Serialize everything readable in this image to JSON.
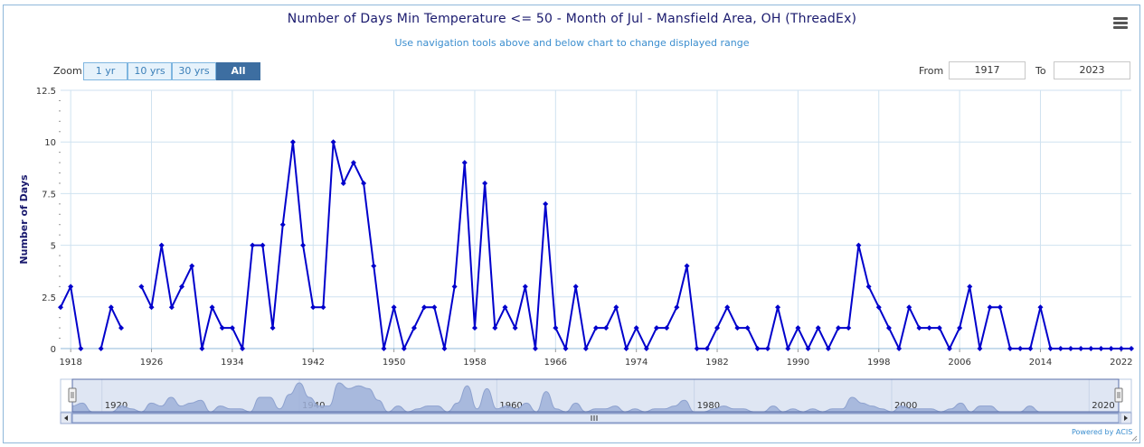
{
  "title": "Number of Days Min Temperature <= 50 - Month of Jul - Mansfield Area, OH (ThreadEx)",
  "subtitle": "Use navigation tools above and below chart to change displayed range",
  "zoom": {
    "label": "Zoom",
    "buttons": [
      "1 yr",
      "10 yrs",
      "30 yrs",
      "All"
    ],
    "active": "All"
  },
  "range": {
    "from_label": "From",
    "from_value": "1917",
    "to_label": "To",
    "to_value": "2023"
  },
  "powered_by": "Powered by ACIS",
  "colors": {
    "series": "#0000cc",
    "grid": "#cfe2f0",
    "navigator_fill": "#9fb0d8",
    "navigator_mask": "#dbe3f2"
  },
  "chart_data": {
    "type": "line",
    "title": "Number of Days Min Temperature <= 50 - Month of Jul - Mansfield Area, OH (ThreadEx)",
    "xlabel": "",
    "ylabel": "Number of Days",
    "xlim": [
      1917,
      2023
    ],
    "ylim": [
      0,
      12.5
    ],
    "x_ticks": [
      1918,
      1926,
      1934,
      1942,
      1950,
      1958,
      1966,
      1974,
      1982,
      1990,
      1998,
      2006,
      2014,
      2022
    ],
    "y_ticks": [
      "0",
      "2.5",
      "5",
      "7.5",
      "10",
      "12.5"
    ],
    "navigator_ticks": [
      1920,
      1940,
      1960,
      1980,
      2000,
      2020
    ],
    "grid": true,
    "series": [
      {
        "name": "",
        "x": [
          1917,
          1918,
          1919,
          1920,
          1921,
          1922,
          1923,
          1924,
          1925,
          1926,
          1927,
          1928,
          1929,
          1930,
          1931,
          1932,
          1933,
          1934,
          1935,
          1936,
          1937,
          1938,
          1939,
          1940,
          1941,
          1942,
          1943,
          1944,
          1945,
          1946,
          1947,
          1948,
          1949,
          1950,
          1951,
          1952,
          1953,
          1954,
          1955,
          1956,
          1957,
          1958,
          1959,
          1960,
          1961,
          1962,
          1963,
          1964,
          1965,
          1966,
          1967,
          1968,
          1969,
          1970,
          1971,
          1972,
          1973,
          1974,
          1975,
          1976,
          1977,
          1978,
          1979,
          1980,
          1981,
          1982,
          1983,
          1984,
          1985,
          1986,
          1987,
          1988,
          1989,
          1990,
          1991,
          1992,
          1993,
          1994,
          1995,
          1996,
          1997,
          1998,
          1999,
          2000,
          2001,
          2002,
          2003,
          2004,
          2005,
          2006,
          2007,
          2008,
          2009,
          2010,
          2011,
          2012,
          2013,
          2014,
          2015,
          2016,
          2017,
          2018,
          2019,
          2020,
          2021,
          2022,
          2023
        ],
        "values": [
          2,
          3,
          0,
          null,
          0,
          2,
          1,
          null,
          3,
          2,
          5,
          2,
          3,
          4,
          0,
          2,
          1,
          1,
          0,
          5,
          5,
          1,
          6,
          10,
          5,
          2,
          2,
          10,
          8,
          9,
          8,
          4,
          0,
          2,
          0,
          1,
          2,
          2,
          0,
          3,
          9,
          1,
          8,
          1,
          2,
          1,
          3,
          0,
          7,
          1,
          0,
          3,
          0,
          1,
          1,
          2,
          0,
          1,
          0,
          1,
          1,
          2,
          4,
          0,
          0,
          1,
          2,
          1,
          1,
          0,
          0,
          2,
          0,
          1,
          0,
          1,
          0,
          1,
          1,
          5,
          3,
          2,
          1,
          0,
          2,
          1,
          1,
          1,
          0,
          1,
          3,
          0,
          2,
          2,
          0,
          0,
          0,
          2,
          0,
          0,
          0,
          0,
          0,
          0,
          0,
          0,
          0
        ]
      }
    ]
  }
}
